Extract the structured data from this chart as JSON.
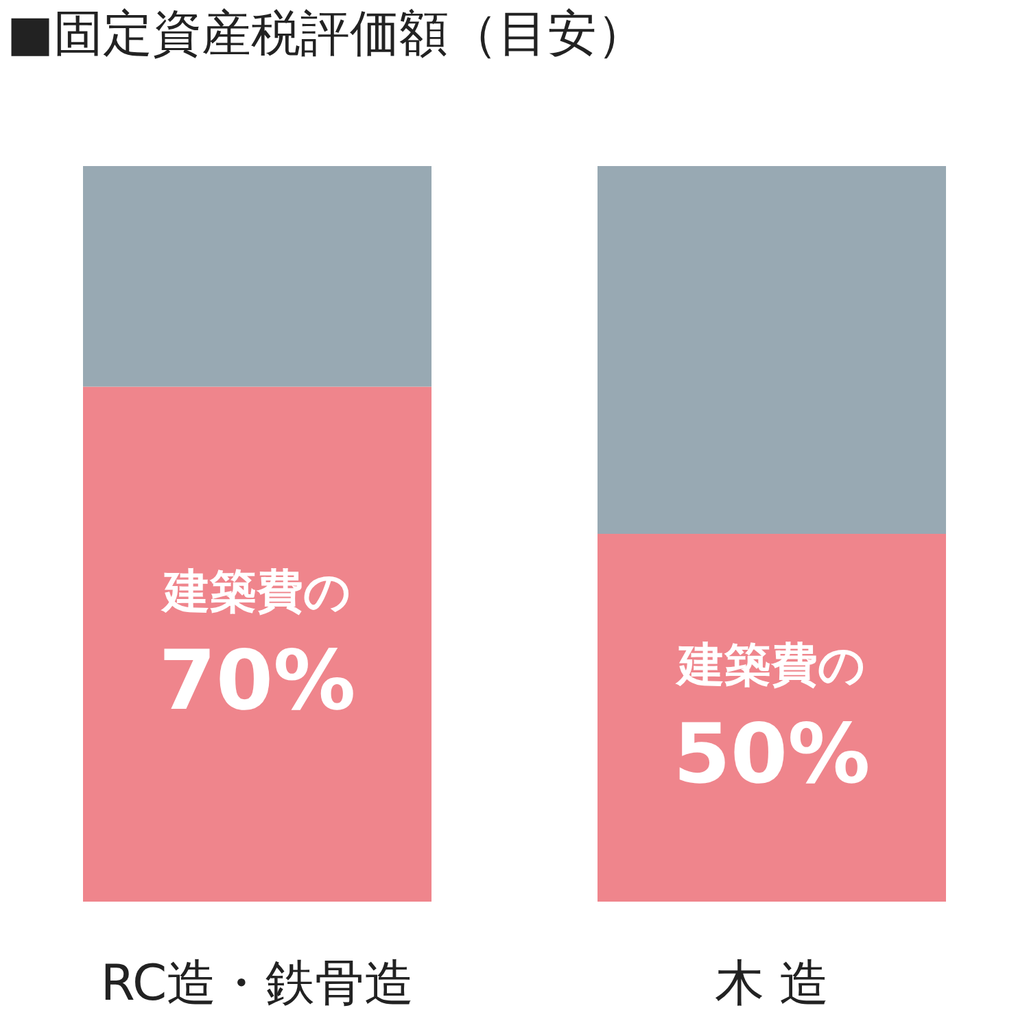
{
  "chart_data": {
    "type": "bar",
    "title": "■固定資産税評価額（目安）",
    "categories": [
      "RC造・鉄骨造",
      "木 造"
    ],
    "stacked": true,
    "series": [
      {
        "color": "#ef858c",
        "values": [
          70,
          50
        ],
        "value_labels": [
          "建築費の\n70%",
          "建築費の\n50%"
        ]
      },
      {
        "color": "#98a9b3",
        "values": [
          30,
          50
        ]
      }
    ],
    "ylim": [
      0,
      100
    ],
    "tick_labels": "x"
  }
}
